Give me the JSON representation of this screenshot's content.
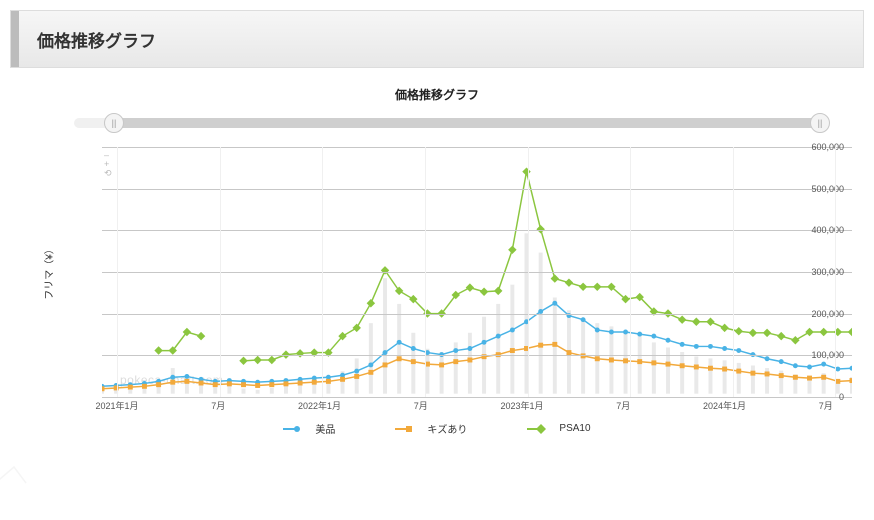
{
  "header": {
    "title": "価格推移グラフ"
  },
  "chart": {
    "title": "価格推移グラフ",
    "type": "line",
    "y_axis": {
      "label": "フリマ（¥）",
      "min": 0,
      "max": 600000,
      "tick_step": 100000,
      "ticks": [
        "0",
        "100,000",
        "200,000",
        "300,000",
        "400,000",
        "500,000",
        "600,000"
      ],
      "tick_fontsize": 9,
      "label_fontsize": 10,
      "grid_color": "#c7c7c7"
    },
    "x_axis": {
      "ticks": [
        {
          "pos": 0.02,
          "label": "2021年1月"
        },
        {
          "pos": 0.155,
          "label": "7月"
        },
        {
          "pos": 0.29,
          "label": "2022年1月"
        },
        {
          "pos": 0.425,
          "label": "7月"
        },
        {
          "pos": 0.56,
          "label": "2023年1月"
        },
        {
          "pos": 0.695,
          "label": "7月"
        },
        {
          "pos": 0.83,
          "label": "2024年1月"
        },
        {
          "pos": 0.965,
          "label": "7月"
        }
      ],
      "tick_fontsize": 9,
      "vgrid_color": "#f0f0f0"
    },
    "series": [
      {
        "name": "美品",
        "color": "#49b3e6",
        "marker": "circle",
        "marker_size": 5,
        "line_width": 1.5,
        "data": [
          18000,
          20000,
          22000,
          25000,
          30000,
          40000,
          42000,
          35000,
          30000,
          32000,
          30000,
          28000,
          30000,
          32000,
          35000,
          38000,
          40000,
          45000,
          55000,
          70000,
          100000,
          125000,
          110000,
          100000,
          95000,
          105000,
          110000,
          125000,
          140000,
          155000,
          175000,
          200000,
          220000,
          190000,
          180000,
          155000,
          150000,
          150000,
          145000,
          140000,
          130000,
          120000,
          115000,
          115000,
          110000,
          105000,
          95000,
          85000,
          78000,
          68000,
          65000,
          72000,
          60000,
          62000
        ]
      },
      {
        "name": "キズあり",
        "color": "#f2a93b",
        "marker": "square",
        "marker_size": 5,
        "line_width": 1.5,
        "data": [
          12000,
          14000,
          16000,
          18000,
          22000,
          28000,
          30000,
          26000,
          22000,
          24000,
          22000,
          20000,
          22000,
          24000,
          26000,
          28000,
          30000,
          35000,
          42000,
          52000,
          70000,
          85000,
          78000,
          72000,
          70000,
          78000,
          82000,
          90000,
          95000,
          105000,
          110000,
          118000,
          120000,
          100000,
          92000,
          85000,
          82000,
          80000,
          78000,
          75000,
          72000,
          68000,
          65000,
          62000,
          60000,
          55000,
          50000,
          48000,
          44000,
          40000,
          38000,
          40000,
          30000,
          32000
        ]
      },
      {
        "name": "PSA10",
        "color": "#8bc63f",
        "marker": "diamond",
        "marker_size": 6,
        "line_width": 1.5,
        "data": [
          null,
          null,
          null,
          null,
          105000,
          105000,
          150000,
          140000,
          null,
          null,
          80000,
          82000,
          82000,
          95000,
          98000,
          100000,
          100000,
          140000,
          160000,
          220000,
          300000,
          250000,
          230000,
          195000,
          195000,
          240000,
          258000,
          248000,
          250000,
          350000,
          540000,
          400000,
          280000,
          270000,
          260000,
          260000,
          260000,
          230000,
          235000,
          200000,
          195000,
          180000,
          175000,
          175000,
          160000,
          152000,
          148000,
          148000,
          140000,
          130000,
          150000,
          150000,
          150000,
          150000
        ]
      }
    ],
    "background_bars": {
      "color": "#e9e9e9",
      "data": [
        5,
        8,
        6,
        9,
        12,
        40,
        25,
        18,
        10,
        14,
        8,
        6,
        9,
        12,
        15,
        22,
        28,
        35,
        55,
        110,
        180,
        140,
        95,
        70,
        65,
        80,
        95,
        120,
        140,
        170,
        250,
        220,
        150,
        130,
        115,
        110,
        105,
        95,
        90,
        80,
        72,
        65,
        58,
        55,
        52,
        48,
        44,
        40,
        36,
        30,
        28,
        32,
        22,
        26
      ]
    },
    "legend": {
      "items": [
        "美品",
        "キズあり",
        "PSA10"
      ],
      "fontsize": 10
    },
    "slider": {
      "track_color": "#cfcfcf",
      "track_bg": "#f0f0f0",
      "handle_left_pos": 0.04,
      "handle_right_pos": 1.0
    },
    "watermark": "pokeca-chart.com",
    "background_color": "#ffffff"
  }
}
